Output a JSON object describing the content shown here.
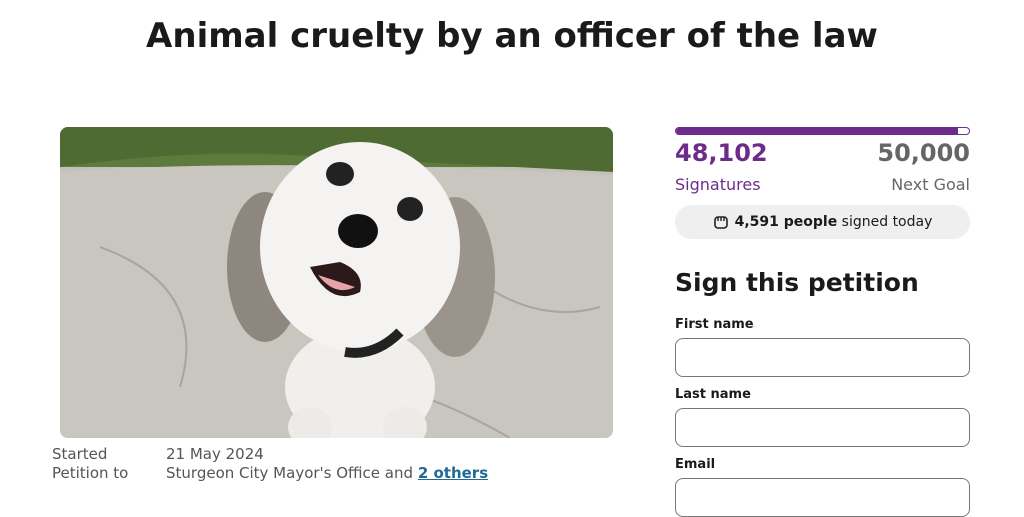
{
  "header": {
    "title": "Animal cruelty by an officer of the law"
  },
  "progress": {
    "signatures": {
      "value": 48102,
      "label": "48,102"
    },
    "signatures_label": "Signatures",
    "goal": {
      "value": 50000,
      "label": "50,000"
    },
    "goal_label": "Next Goal",
    "today": {
      "count": "4,591 people",
      "rest": "signed today"
    }
  },
  "form": {
    "heading": "Sign this petition",
    "fields": [
      "First name",
      "Last name",
      "Email"
    ]
  },
  "details": {
    "started_label": "Started",
    "started": "21 May 2024",
    "petition_to_label": "Petition to",
    "petition_to": "Sturgeon City Mayor's Office and",
    "others_link": "2 others"
  }
}
